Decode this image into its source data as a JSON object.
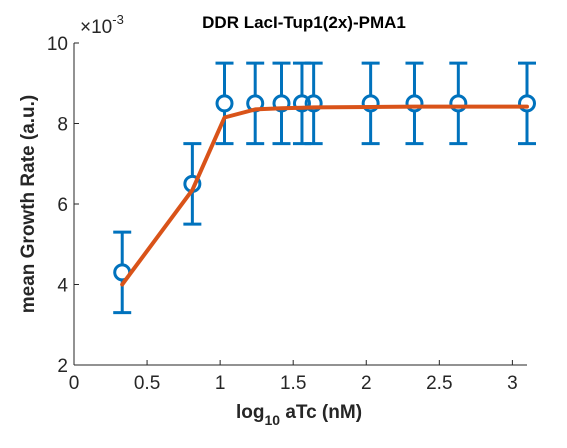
{
  "chart_data": {
    "type": "scatter",
    "title": "DDR LacI-Tup1(2x)-PMA1",
    "xlabel": {
      "base": "log",
      "sub": "10",
      "rest": " aTc (nM)"
    },
    "ylabel": "mean Growth Rate (a.u.)",
    "y_exponent": {
      "base": "×10",
      "power": "-3"
    },
    "xlim": [
      0,
      3.1
    ],
    "ylim": [
      2,
      10
    ],
    "xticks": [
      0,
      0.5,
      1,
      1.5,
      2,
      2.5,
      3
    ],
    "xtick_labels": [
      "0",
      "0.5",
      "1",
      "1.5",
      "2",
      "2.5",
      "3"
    ],
    "yticks": [
      2,
      4,
      6,
      8,
      10
    ],
    "ytick_labels": [
      "2",
      "4",
      "6",
      "8",
      "10"
    ],
    "grid": false,
    "series": [
      {
        "marker": "circle",
        "color": "#0072BD",
        "x": [
          0.33,
          0.81,
          1.03,
          1.24,
          1.42,
          1.56,
          1.64,
          2.03,
          2.33,
          2.63,
          3.1
        ],
        "y": [
          4.3,
          6.5,
          8.5,
          8.5,
          8.5,
          8.5,
          8.5,
          8.5,
          8.5,
          8.5,
          8.5
        ],
        "error": [
          1.0,
          1.0,
          1.0,
          1.0,
          1.0,
          1.0,
          1.0,
          1.0,
          1.0,
          1.0,
          1.0
        ]
      },
      {
        "marker": "none",
        "style": "line",
        "color": "#D95319",
        "x": [
          0.33,
          0.81,
          1.03,
          1.24,
          1.42,
          1.56,
          1.64,
          2.03,
          2.33,
          2.63,
          3.1
        ],
        "y": [
          4.0,
          6.35,
          8.15,
          8.35,
          8.38,
          8.39,
          8.4,
          8.41,
          8.42,
          8.42,
          8.42
        ]
      }
    ]
  }
}
